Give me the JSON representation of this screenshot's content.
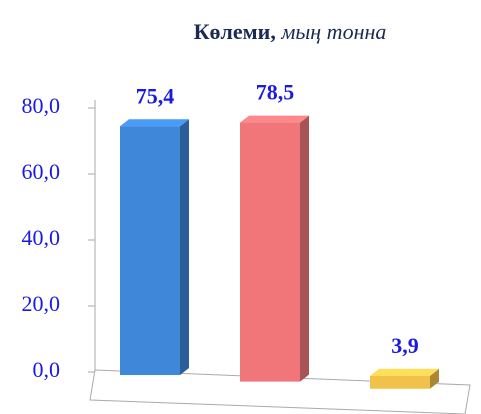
{
  "chart_data": {
    "type": "bar3d",
    "title": "Көлеми,",
    "unit": "мың тонна",
    "categories": [
      null,
      null,
      null
    ],
    "values": [
      75.4,
      78.5,
      3.9
    ],
    "value_labels": [
      "75,4",
      "78,5",
      "3,9"
    ],
    "colors": [
      "#3f87d8",
      "#f0767a",
      "#f0c24a"
    ],
    "ylim": [
      0,
      80
    ],
    "yticks": [
      {
        "value": 0,
        "label": "0,0"
      },
      {
        "value": 20,
        "label": "20,0"
      },
      {
        "value": 40,
        "label": "40,0"
      },
      {
        "value": 60,
        "label": "60,0"
      },
      {
        "value": 80,
        "label": "80,0"
      }
    ]
  }
}
